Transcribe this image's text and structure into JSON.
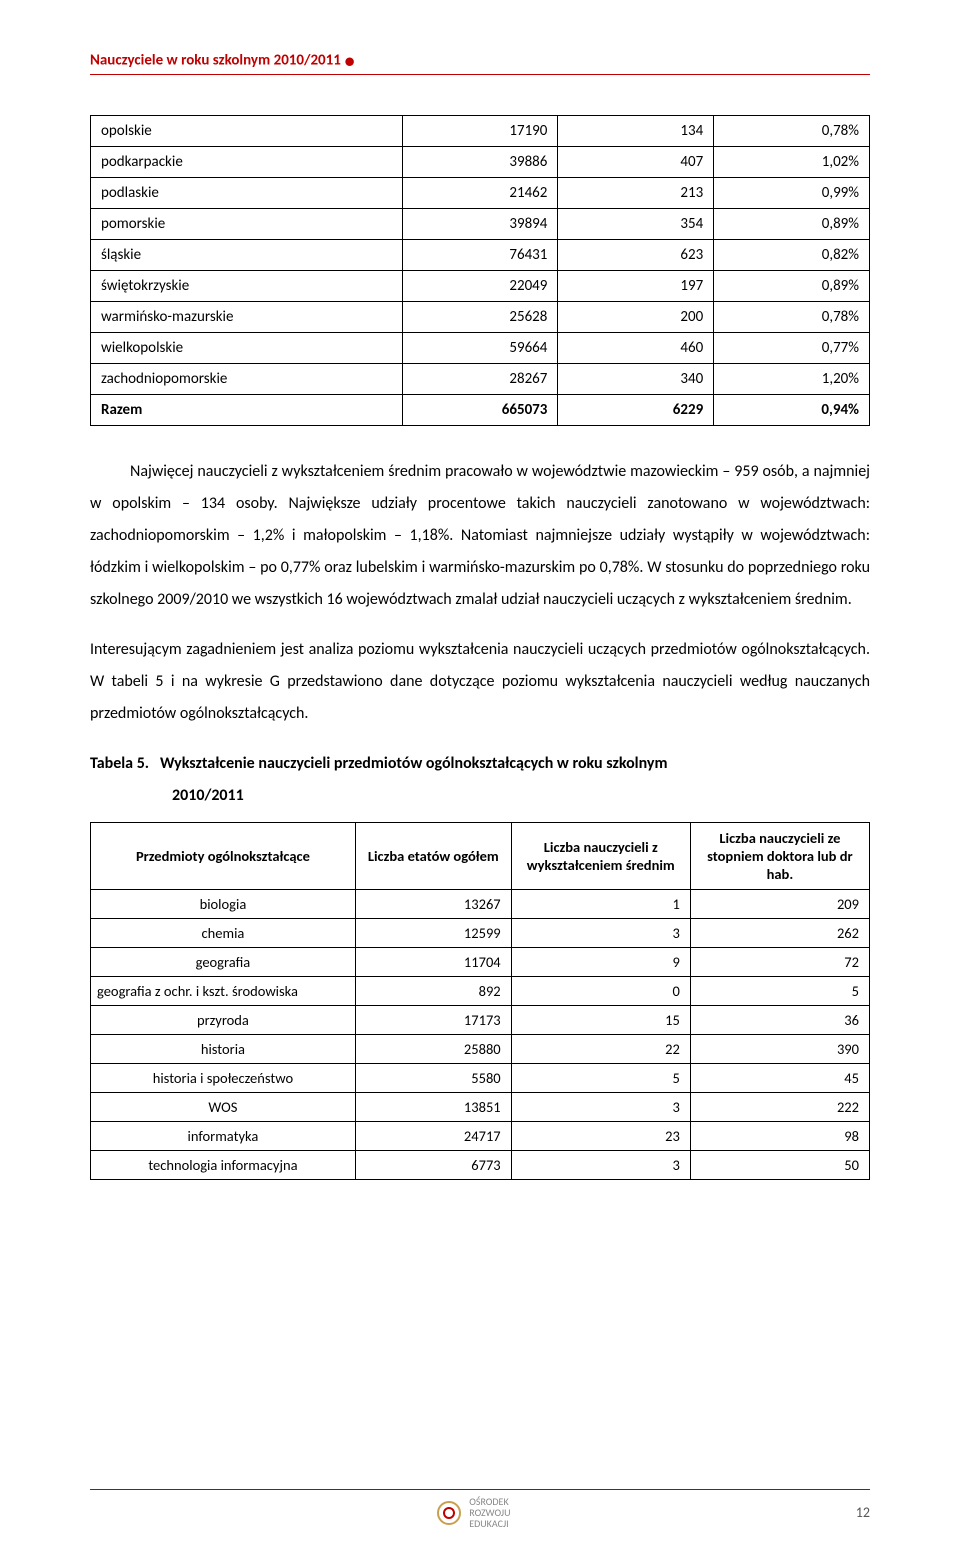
{
  "header": {
    "title": "Nauczyciele w roku szkolnym 2010/2011"
  },
  "table1": {
    "rows": [
      {
        "region": "opolskie",
        "v1": "17190",
        "v2": "134",
        "v3": "0,78%"
      },
      {
        "region": "podkarpackie",
        "v1": "39886",
        "v2": "407",
        "v3": "1,02%"
      },
      {
        "region": "podlaskie",
        "v1": "21462",
        "v2": "213",
        "v3": "0,99%"
      },
      {
        "region": "pomorskie",
        "v1": "39894",
        "v2": "354",
        "v3": "0,89%"
      },
      {
        "region": "śląskie",
        "v1": "76431",
        "v2": "623",
        "v3": "0,82%"
      },
      {
        "region": "świętokrzyskie",
        "v1": "22049",
        "v2": "197",
        "v3": "0,89%"
      },
      {
        "region": "warmińsko-mazurskie",
        "v1": "25628",
        "v2": "200",
        "v3": "0,78%"
      },
      {
        "region": "wielkopolskie",
        "v1": "59664",
        "v2": "460",
        "v3": "0,77%"
      },
      {
        "region": "zachodniopomorskie",
        "v1": "28267",
        "v2": "340",
        "v3": "1,20%"
      }
    ],
    "total": {
      "region": "Razem",
      "v1": "665073",
      "v2": "6229",
      "v3": "0,94%"
    }
  },
  "paragraphs": {
    "p1": "Najwięcej nauczycieli z wykształceniem średnim pracowało w województwie mazowieckim – 959 osób, a najmniej w opolskim – 134 osoby. Największe udziały procentowe takich nauczycieli zanotowano w województwach: zachodniopomorskim – 1,2% i małopolskim – 1,18%. Natomiast najmniejsze udziały wystąpiły w województwach: łódzkim i wielkopolskim – po 0,77% oraz lubelskim i warmińsko-mazurskim po 0,78%. W stosunku do poprzedniego roku szkolnego 2009/2010 we wszystkich 16 województwach zmalał udział nauczycieli uczących z wykształceniem średnim.",
    "p2": "Interesującym zagadnieniem jest analiza poziomu wykształcenia nauczycieli uczących przedmiotów ogólnokształcących. W tabeli 5 i na wykresie G przedstawiono dane dotyczące poziomu wykształcenia nauczycieli według nauczanych przedmiotów ogólnokształcących."
  },
  "table2": {
    "caption_label": "Tabela 5.",
    "caption_rest": "Wykształcenie nauczycieli przedmiotów ogólnokształcących w roku szkolnym",
    "caption_line2": "2010/2011",
    "headers": {
      "h1": "Przedmioty ogólnokształcące",
      "h2": "Liczba etatów ogółem",
      "h3": "Liczba nauczycieli z wykształceniem średnim",
      "h4": "Liczba nauczycieli ze stopniem doktora lub dr hab."
    },
    "rows": [
      {
        "subject": "biologia",
        "v1": "13267",
        "v2": "1",
        "v3": "209"
      },
      {
        "subject": "chemia",
        "v1": "12599",
        "v2": "3",
        "v3": "262"
      },
      {
        "subject": "geografia",
        "v1": "11704",
        "v2": "9",
        "v3": "72"
      },
      {
        "subject": "geografia z ochr. i kszt. środowiska",
        "v1": "892",
        "v2": "0",
        "v3": "5",
        "left": true
      },
      {
        "subject": "przyroda",
        "v1": "17173",
        "v2": "15",
        "v3": "36"
      },
      {
        "subject": "historia",
        "v1": "25880",
        "v2": "22",
        "v3": "390"
      },
      {
        "subject": "historia i społeczeństwo",
        "v1": "5580",
        "v2": "5",
        "v3": "45"
      },
      {
        "subject": "WOS",
        "v1": "13851",
        "v2": "3",
        "v3": "222"
      },
      {
        "subject": "informatyka",
        "v1": "24717",
        "v2": "23",
        "v3": "98"
      },
      {
        "subject": "technologia informacyjna",
        "v1": "6773",
        "v2": "3",
        "v3": "50"
      }
    ]
  },
  "footer": {
    "logo_lines": [
      "OŚRODEK",
      "ROZWOJU",
      "EDUKACJI"
    ],
    "page": "12"
  },
  "colors": {
    "accent": "#c00000",
    "text": "#000000",
    "footer_text": "#888888"
  }
}
